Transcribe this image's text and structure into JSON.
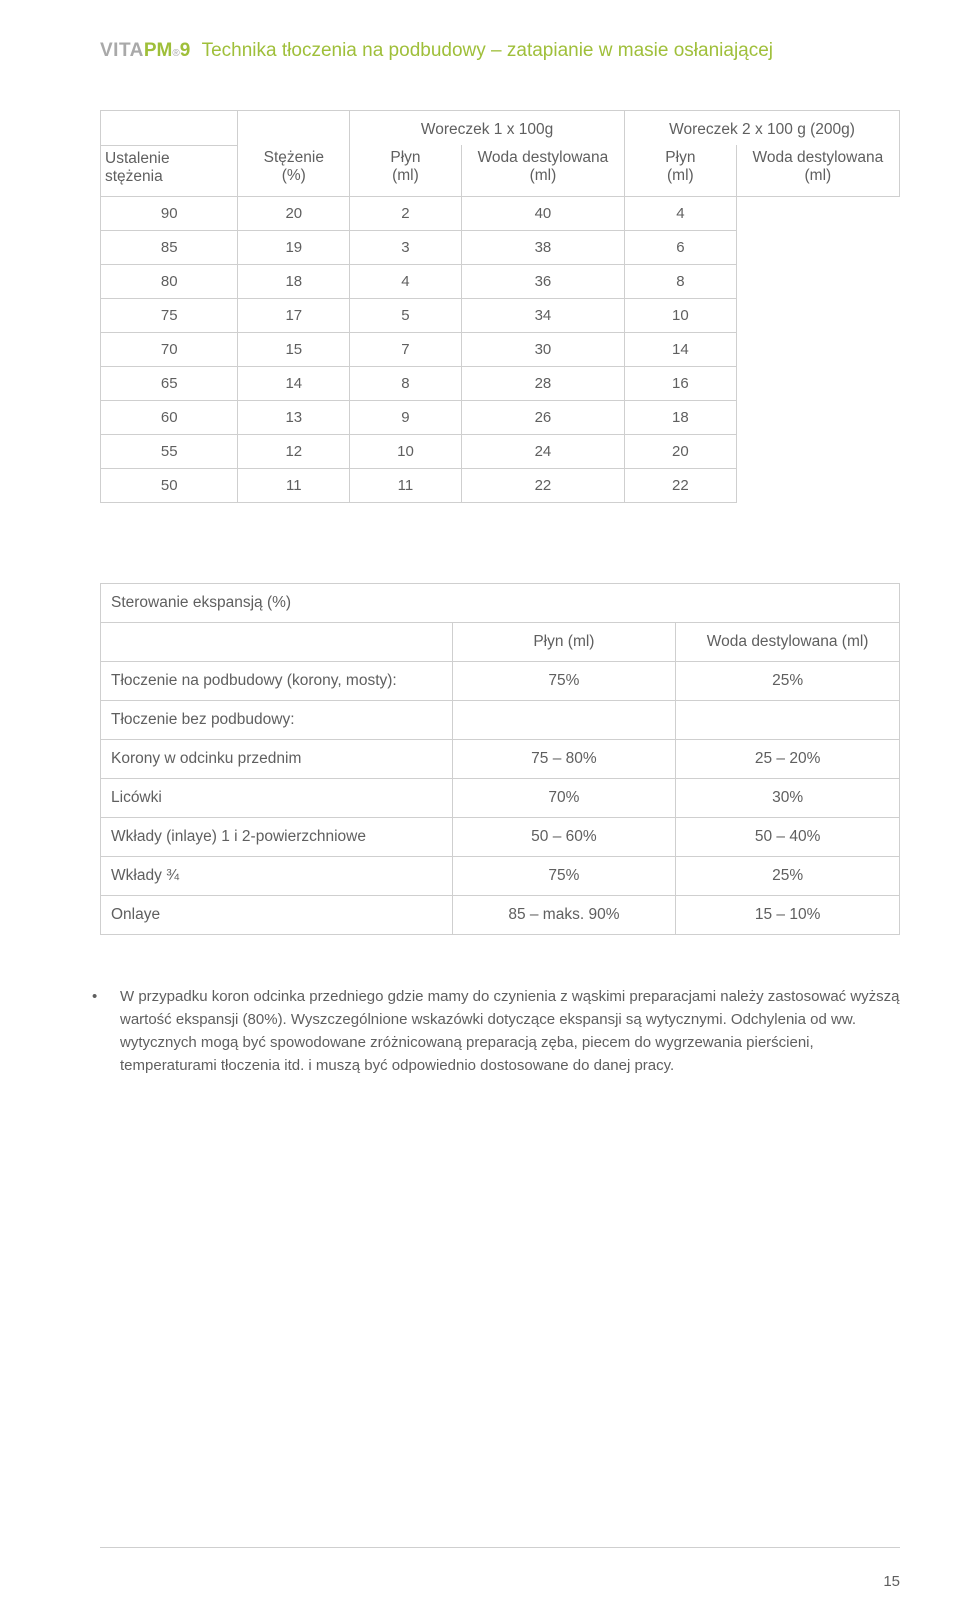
{
  "heading": {
    "vita": "VITA",
    "pm": "PM",
    "sub": "®",
    "nine": "9",
    "text": "Technika tłoczenia na podbudowy – zatapianie w masie osłaniającej"
  },
  "table1": {
    "row_label_l1": "Ustalenie",
    "row_label_l2": "stężenia",
    "group1": "Woreczek 1 x 100g",
    "group2": "Woreczek 2 x 100 g (200g)",
    "cols": {
      "c1_l1": "Stężenie",
      "c1_l2": "(%)",
      "c2_l1": "Płyn",
      "c2_l2": "(ml)",
      "c3_l1": "Woda destylowana",
      "c3_l2": "(ml)",
      "c4_l1": "Płyn",
      "c4_l2": "(ml)",
      "c5_l1": "Woda destylowana",
      "c5_l2": "(ml)"
    },
    "rows": [
      {
        "c1": "90",
        "c2": "20",
        "c3": "2",
        "c4": "40",
        "c5": "4"
      },
      {
        "c1": "85",
        "c2": "19",
        "c3": "3",
        "c4": "38",
        "c5": "6"
      },
      {
        "c1": "80",
        "c2": "18",
        "c3": "4",
        "c4": "36",
        "c5": "8"
      },
      {
        "c1": "75",
        "c2": "17",
        "c3": "5",
        "c4": "34",
        "c5": "10"
      },
      {
        "c1": "70",
        "c2": "15",
        "c3": "7",
        "c4": "30",
        "c5": "14"
      },
      {
        "c1": "65",
        "c2": "14",
        "c3": "8",
        "c4": "28",
        "c5": "16"
      },
      {
        "c1": "60",
        "c2": "13",
        "c3": "9",
        "c4": "26",
        "c5": "18"
      },
      {
        "c1": "55",
        "c2": "12",
        "c3": "10",
        "c4": "24",
        "c5": "20"
      },
      {
        "c1": "50",
        "c2": "11",
        "c3": "11",
        "c4": "22",
        "c5": "22"
      }
    ]
  },
  "table2": {
    "title": "Sterowanie ekspansją (%)",
    "head_c2": "Płyn (ml)",
    "head_c3": "Woda destylowana (ml)",
    "rows": [
      {
        "label": "Tłoczenie na podbudowy (korony, mosty):",
        "c2": "75%",
        "c3": "25%"
      },
      {
        "label": "Tłoczenie bez podbudowy:",
        "c2": "",
        "c3": ""
      },
      {
        "label": "Korony w odcinku przednim",
        "c2": "75 – 80%",
        "c3": "25 – 20%"
      },
      {
        "label": "Licówki",
        "c2": "70%",
        "c3": "30%"
      },
      {
        "label": "Wkłady (inlaye) 1 i 2-powierzchniowe",
        "c2": "50 – 60%",
        "c3": "50 – 40%"
      },
      {
        "label": "Wkłady ¾",
        "c2": "75%",
        "c3": "25%"
      },
      {
        "label": "Onlaye",
        "c2": "85 – maks. 90%",
        "c3": "15 – 10%"
      }
    ]
  },
  "note": "W przypadku koron odcinka przedniego gdzie mamy do czynienia z wąskimi preparacjami należy zastosować wyższą wartość ekspansji (80%). Wyszczególnione wskazówki dotyczące ekspansji są wytycznymi. Odchylenia od ww. wytycznych mogą być spowodowane zróżnicowaną preparacją zęba, piecem do wygrzewania pierścieni, temperaturami tłoczenia itd. i muszą być odpowiednio dostosowane do danej pracy.",
  "page_number": "15",
  "colors": {
    "accent": "#9fbf3a",
    "grey_text": "#5f5f5f",
    "border": "#cfcfcf",
    "logo_grey": "#a9a9a9"
  },
  "typography": {
    "heading_fontsize": 19,
    "body_fontsize": 15
  }
}
